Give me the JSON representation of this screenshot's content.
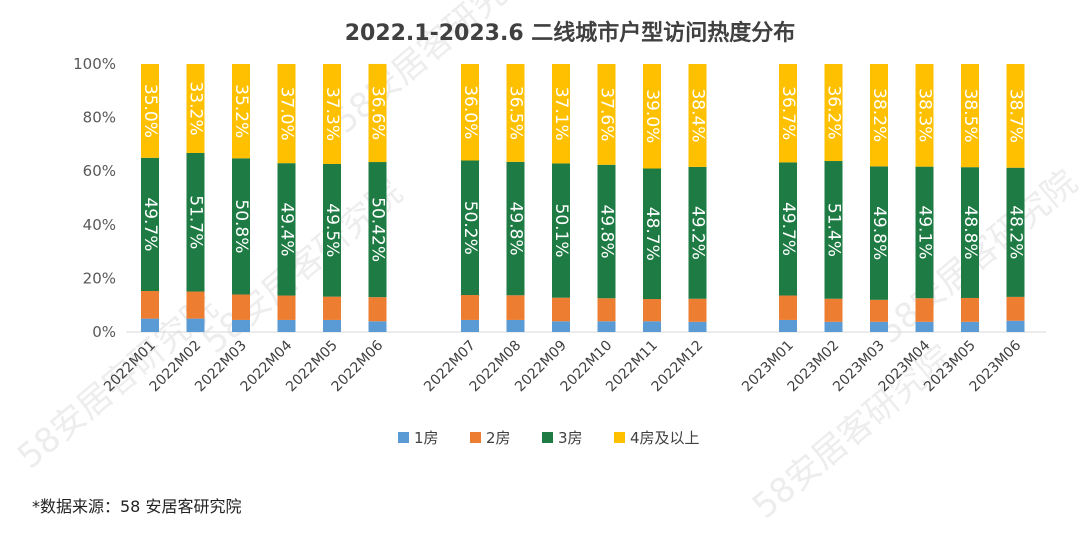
{
  "source_note": "*数据来源：58 安居客研究院",
  "watermark": "58安居客研究院",
  "chart_data": {
    "type": "bar",
    "stacked": true,
    "title": "2022.1-2023.6  二线城市户型访问热度分布",
    "xlabel": "",
    "ylabel": "",
    "ylim": [
      0,
      100
    ],
    "yticks": [
      "0%",
      "20%",
      "40%",
      "60%",
      "80%",
      "100%"
    ],
    "grid": false,
    "legend_position": "bottom",
    "categories": [
      "2022M01",
      "2022M02",
      "2022M03",
      "2022M04",
      "2022M05",
      "2022M06",
      "2022M07",
      "2022M08",
      "2022M09",
      "2022M10",
      "2022M11",
      "2022M12",
      "2023M01",
      "2023M02",
      "2023M03",
      "2023M04",
      "2023M05",
      "2023M06"
    ],
    "series": [
      {
        "name": "1房",
        "color": "#5B9BD5",
        "values": [
          5.0,
          5.0,
          4.5,
          4.5,
          4.5,
          4.0,
          4.5,
          4.5,
          4.0,
          4.0,
          4.0,
          3.8,
          4.5,
          3.8,
          3.8,
          3.8,
          3.8,
          4.2
        ]
      },
      {
        "name": "2房",
        "color": "#ED7D31",
        "values": [
          10.3,
          10.1,
          9.5,
          9.1,
          8.7,
          9.0,
          9.3,
          9.2,
          8.8,
          8.6,
          8.3,
          8.6,
          9.1,
          8.6,
          8.2,
          8.8,
          8.9,
          8.9
        ]
      },
      {
        "name": "3房",
        "color": "#1E7B44",
        "values": [
          49.7,
          51.7,
          50.8,
          49.4,
          49.5,
          50.42,
          50.2,
          49.8,
          50.1,
          49.8,
          48.7,
          49.2,
          49.7,
          51.4,
          49.8,
          49.1,
          48.8,
          48.2
        ]
      },
      {
        "name": "4房及以上",
        "color": "#FFC000",
        "values": [
          35.0,
          33.2,
          35.2,
          37.0,
          37.3,
          36.6,
          36.0,
          36.5,
          37.1,
          37.6,
          39.0,
          38.4,
          36.7,
          36.2,
          38.2,
          38.3,
          38.5,
          38.7
        ]
      }
    ],
    "data_labels": {
      "3房": [
        "49.7%",
        "51.7%",
        "50.8%",
        "49.4%",
        "49.5%",
        "50.42%",
        "50.2%",
        "49.8%",
        "50.1%",
        "49.8%",
        "48.7%",
        "49.2%",
        "49.7%",
        "51.4%",
        "49.8%",
        "49.1%",
        "48.8%",
        "48.2%"
      ],
      "4房及以上": [
        "35.0%",
        "33.2%",
        "35.2%",
        "37.0%",
        "37.3%",
        "36.6%",
        "36.0%",
        "36.5%",
        "37.1%",
        "37.6%",
        "39.0%",
        "38.4%",
        "36.7%",
        "36.2%",
        "38.2%",
        "38.3%",
        "38.5%",
        "38.7%"
      ]
    }
  }
}
